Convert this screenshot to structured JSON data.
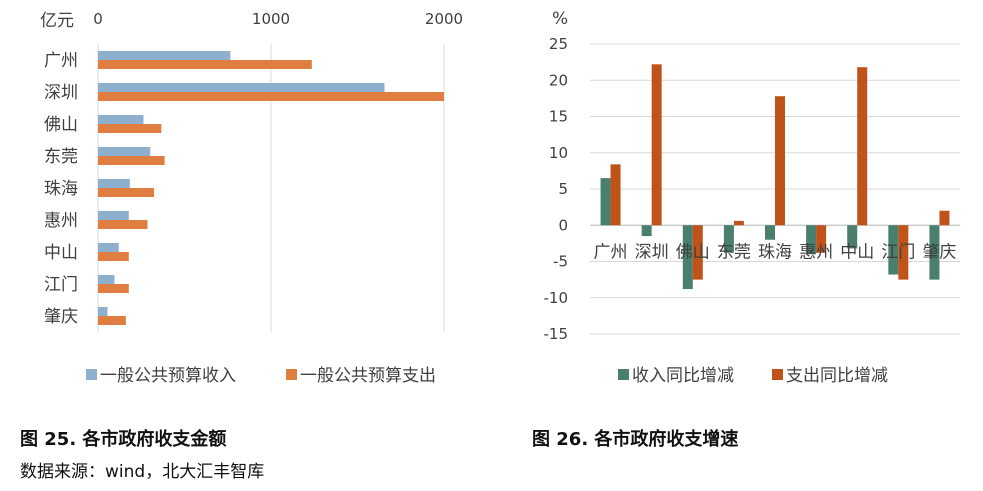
{
  "chart_data": [
    {
      "type": "bar",
      "orientation": "horizontal",
      "unit_label": "亿元",
      "categories": [
        "广州",
        "深圳",
        "佛山",
        "东莞",
        "珠海",
        "惠州",
        "中山",
        "江门",
        "肇庆"
      ],
      "xlim": [
        0,
        2000
      ],
      "xticks": [
        "0",
        "1000",
        "2000"
      ],
      "grid": true,
      "legend_position": "bottom",
      "series": [
        {
          "name": "一般公共预算收入",
          "color": "#8FAFCF",
          "values": [
            765,
            1656,
            263,
            302,
            184,
            178,
            120,
            95,
            55
          ]
        },
        {
          "name": "一般公共预算支出",
          "color": "#E07D40",
          "values": [
            1236,
            2000,
            366,
            385,
            324,
            286,
            178,
            178,
            161
          ]
        }
      ],
      "caption": "图 25.  各市政府收支金额",
      "source": "数据来源：wind，北大汇丰智库"
    },
    {
      "type": "bar",
      "orientation": "vertical",
      "unit_label": "%",
      "categories": [
        "广州",
        "深圳",
        "佛山",
        "东莞",
        "珠海",
        "惠州",
        "中山",
        "江门",
        "肇庆"
      ],
      "ylim": [
        -15,
        25
      ],
      "yticks": [
        "25",
        "20",
        "15",
        "10",
        "5",
        "0",
        "-5",
        "-10",
        "-15"
      ],
      "grid": true,
      "legend_position": "bottom",
      "series": [
        {
          "name": "收入同比增减",
          "color": "#4A7F6E",
          "values": [
            6.5,
            -1.5,
            -8.8,
            -3.8,
            -2.0,
            -4.0,
            -3.2,
            -6.8,
            -7.5
          ]
        },
        {
          "name": "支出同比增减",
          "color": "#C0531A",
          "values": [
            8.4,
            22.2,
            -7.5,
            0.6,
            17.8,
            -3.8,
            21.8,
            -7.5,
            2.0
          ]
        }
      ],
      "caption": "图 26.  各市政府收支增速"
    }
  ]
}
